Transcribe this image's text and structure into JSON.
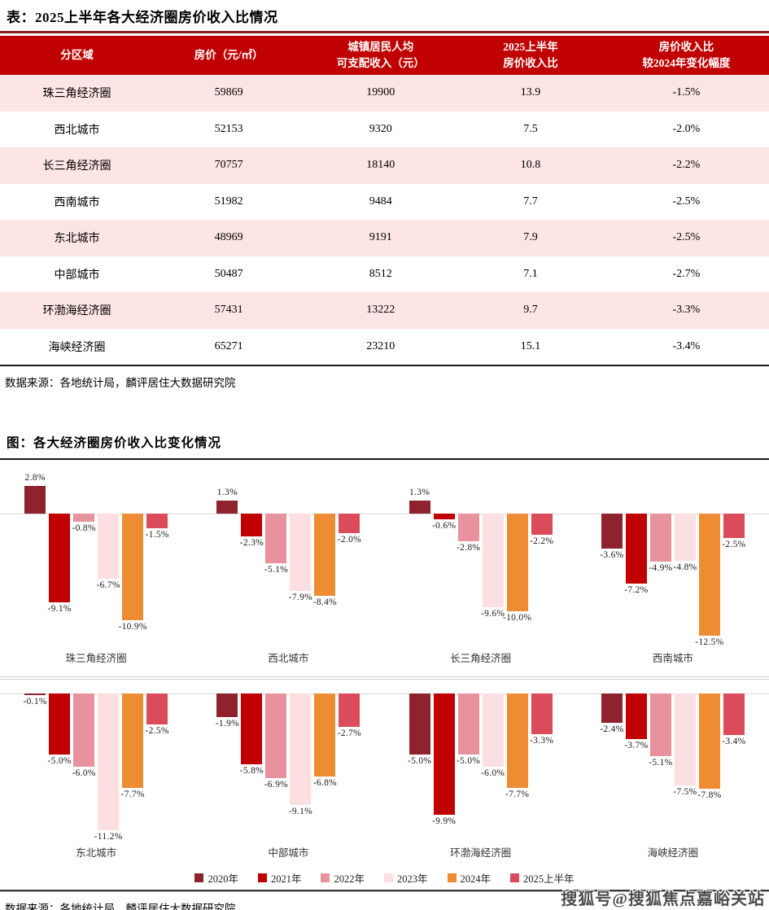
{
  "table": {
    "title": "表：2025上半年各大经济圈房价收入比情况",
    "columns": [
      [
        "分区域"
      ],
      [
        "房价（元/㎡）"
      ],
      [
        "城镇居民人均",
        "可支配收入（元）"
      ],
      [
        "2025上半年",
        "房价收入比"
      ],
      [
        "房价收入比",
        "较2024年变化幅度"
      ]
    ],
    "rows": [
      {
        "region": "珠三角经济圈",
        "price": "59869",
        "income": "19900",
        "ratio": "13.9",
        "change": "-1.5%"
      },
      {
        "region": "西北城市",
        "price": "52153",
        "income": "9320",
        "ratio": "7.5",
        "change": "-2.0%"
      },
      {
        "region": "长三角经济圈",
        "price": "70757",
        "income": "18140",
        "ratio": "10.8",
        "change": "-2.2%"
      },
      {
        "region": "西南城市",
        "price": "51982",
        "income": "9484",
        "ratio": "7.7",
        "change": "-2.5%"
      },
      {
        "region": "东北城市",
        "price": "48969",
        "income": "9191",
        "ratio": "7.9",
        "change": "-2.5%"
      },
      {
        "region": "中部城市",
        "price": "50487",
        "income": "8512",
        "ratio": "7.1",
        "change": "-2.7%"
      },
      {
        "region": "环渤海经济圈",
        "price": "57431",
        "income": "13222",
        "ratio": "9.7",
        "change": "-3.3%"
      },
      {
        "region": "海峡经济圈",
        "price": "65271",
        "income": "23210",
        "ratio": "15.1",
        "change": "-3.4%"
      }
    ],
    "source": "数据来源：各地统计局，麟评居住大数据研究院"
  },
  "chart_data": {
    "type": "bar",
    "title": "图：各大经济圈房价收入比变化情况",
    "unit": "%",
    "legend": [
      "2020年",
      "2021年",
      "2022年",
      "2023年",
      "2024年",
      "2025上半年"
    ],
    "legend_position": "bottom",
    "series_colors": [
      "#8E222D",
      "#C00000",
      "#E8929D",
      "#FBDFE1",
      "#EE8C34",
      "#DC4B5A"
    ],
    "groups": [
      {
        "name": "珠三角经济圈",
        "values": [
          2.8,
          -9.1,
          -0.8,
          -6.7,
          -10.9,
          -1.5
        ]
      },
      {
        "name": "西北城市",
        "values": [
          1.3,
          -2.3,
          -5.1,
          -7.9,
          -8.4,
          -2.0
        ]
      },
      {
        "name": "长三角经济圈",
        "values": [
          1.3,
          -0.6,
          -2.8,
          -9.6,
          -10.0,
          -2.2
        ]
      },
      {
        "name": "西南城市",
        "values": [
          -3.6,
          -7.2,
          -4.9,
          -4.8,
          -12.5,
          -2.5
        ]
      },
      {
        "name": "东北城市",
        "values": [
          -0.1,
          -5.0,
          -6.0,
          -11.2,
          -7.7,
          -2.5
        ]
      },
      {
        "name": "中部城市",
        "values": [
          -1.9,
          -5.8,
          -6.9,
          -9.1,
          -6.8,
          -2.7
        ]
      },
      {
        "name": "环渤海经济圈",
        "values": [
          -5.0,
          -9.9,
          -5.0,
          -6.0,
          -7.7,
          -3.3
        ]
      },
      {
        "name": "海峡经济圈",
        "values": [
          -2.4,
          -3.7,
          -5.1,
          -7.5,
          -7.8,
          -3.4
        ]
      }
    ],
    "rows": [
      [
        0,
        1,
        2,
        3
      ],
      [
        4,
        5,
        6,
        7
      ]
    ],
    "grid": "off",
    "value_labels": "on"
  },
  "chart_source": "数据来源：各地统计局，麟评居住大数据研究院",
  "watermark": "搜狐号@搜狐焦点嘉峪关站",
  "colors": {
    "header_red": "#C00000",
    "row_pink": "#FCE5E3",
    "title_rule_red": "#8B1B1F",
    "axis_gray": "#D8D8D8"
  }
}
